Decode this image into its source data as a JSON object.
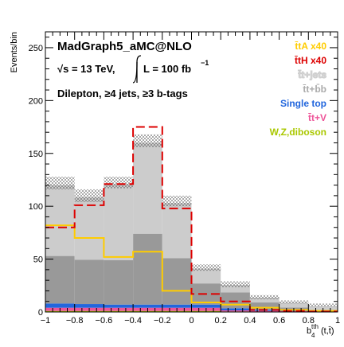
{
  "chart_data": {
    "type": "bar",
    "stacked": true,
    "x_edges": [
      -1,
      -0.8,
      -0.6,
      -0.4,
      -0.2,
      0,
      0.2,
      0.4,
      0.6,
      0.8,
      1
    ],
    "xlim": [
      -1,
      1
    ],
    "ylim": [
      0,
      265
    ],
    "xticks": [
      -1,
      -0.8,
      -0.6,
      -0.4,
      -0.2,
      0,
      0.2,
      0.4,
      0.6,
      0.8,
      1
    ],
    "xtick_labels": [
      "−1",
      "−0.8",
      "−0.6",
      "−0.4",
      "−0.2",
      "0",
      "0.2",
      "0.4",
      "0.6",
      "0.8",
      "1"
    ],
    "yticks": [
      0,
      50,
      100,
      150,
      200,
      250
    ],
    "ytick_labels": [
      "0",
      "50",
      "100",
      "150",
      "200",
      "250"
    ],
    "ylabel": "Events/bin",
    "xlabel_main": "b",
    "xlabel_sub": "4",
    "xlabel_sup": "tth",
    "xlabel_tail": "(t,t̄)",
    "grid": false,
    "legend_position": "top-right",
    "stack": [
      {
        "name": "W,Z,diboson",
        "color": "#aac800",
        "values": [
          1,
          1,
          1,
          1,
          1,
          1,
          0.5,
          0.3,
          0.3,
          0.2
        ]
      },
      {
        "name": "t̄t+V",
        "color": "#ee5599",
        "values": [
          3,
          3,
          3,
          3,
          3,
          3,
          1,
          0.7,
          0.5,
          0.3
        ]
      },
      {
        "name": "Single top",
        "color": "#2266dd",
        "values": [
          4,
          3.5,
          3,
          3,
          3,
          3,
          2,
          1,
          0.5,
          0.4
        ]
      },
      {
        "name": "t̄t+b̄b",
        "color": "#999999",
        "values": [
          45,
          42,
          42,
          67,
          44,
          20,
          15,
          7,
          3,
          1
        ]
      },
      {
        "name": "t̄t+jets",
        "color": "#cccccc",
        "values": [
          67,
          59,
          72,
          86,
          52,
          14,
          7,
          4.5,
          4.5,
          3.5
        ]
      }
    ],
    "stack_total": [
      120,
      108.5,
      121,
      160,
      103,
      41,
      25.5,
      13.5,
      8.8,
      5.4
    ],
    "uncertainty_band": {
      "low": [
        116,
        104,
        117,
        156,
        100,
        39,
        23.5,
        12,
        8,
        5
      ],
      "high": [
        128,
        116,
        128,
        168,
        110,
        45,
        29,
        16,
        11,
        8
      ]
    },
    "overlays": [
      {
        "name": "t̄tA x40",
        "color": "#ffcc00",
        "values": [
          82,
          70,
          52,
          57,
          20,
          9,
          7,
          4,
          2,
          1
        ]
      },
      {
        "name": "t̄tH x40",
        "color": "#dd0000",
        "style": "dashed",
        "values": [
          80,
          101,
          121,
          175,
          98,
          17,
          10,
          2,
          1,
          0.5
        ]
      }
    ],
    "legend": [
      {
        "label": "t̄tA x40",
        "color": "#ffcc00"
      },
      {
        "label": "t̄tH x40",
        "color": "#dd0000"
      },
      {
        "label": "t̄t+jets",
        "color": "#dddddd"
      },
      {
        "label": "t̄t+b̄b",
        "color": "#aaaaaa"
      },
      {
        "label": "Single top",
        "color": "#2266dd"
      },
      {
        "label": "t̄t+V",
        "color": "#ee5599"
      },
      {
        "label": "W,Z,diboson",
        "color": "#aac800"
      }
    ],
    "annotations": {
      "generator": "MadGraph5_aMC@NLO",
      "energy": "√s = 13 TeV,",
      "lumi": "L = 100 fb",
      "lumi_sup": "−1",
      "selection": "Dilepton, ≥4 jets, ≥3 b-tags"
    }
  }
}
